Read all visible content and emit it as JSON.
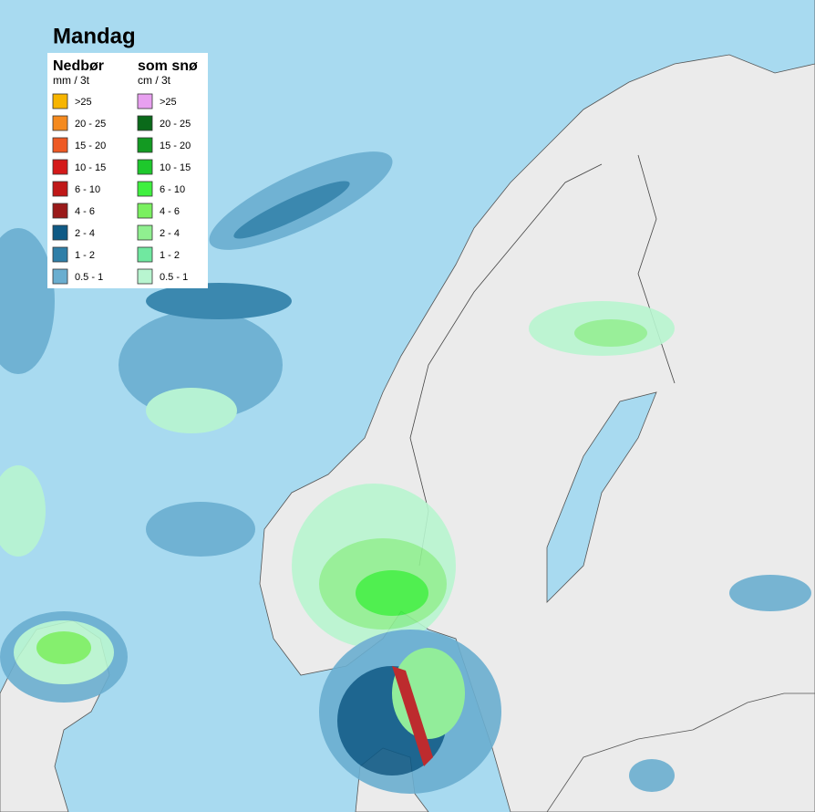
{
  "title": "Mandag",
  "legend": {
    "rain": {
      "title": "Nedbør",
      "unit": "mm / 3t",
      "items": [
        {
          "label": ">25",
          "color": "#f7b500"
        },
        {
          "label": "20 - 25",
          "color": "#f58a1e"
        },
        {
          "label": "15 - 20",
          "color": "#ee5a24"
        },
        {
          "label": "10 - 15",
          "color": "#d41a1a"
        },
        {
          "label": "6 - 10",
          "color": "#c01818"
        },
        {
          "label": "4 - 6",
          "color": "#9a1a1a"
        },
        {
          "label": "2 - 4",
          "color": "#0f5a85"
        },
        {
          "label": "1 - 2",
          "color": "#2f7fa8"
        },
        {
          "label": "0.5 - 1",
          "color": "#6aaed0"
        }
      ]
    },
    "snow": {
      "title": "som snø",
      "unit": "cm / 3t",
      "items": [
        {
          "label": ">25",
          "color": "#e8a0f0"
        },
        {
          "label": "20 - 25",
          "color": "#0a6a1a"
        },
        {
          "label": "15 - 20",
          "color": "#139a22"
        },
        {
          "label": "10 - 15",
          "color": "#1ec82c"
        },
        {
          "label": "6 - 10",
          "color": "#3ff03f"
        },
        {
          "label": "4 - 6",
          "color": "#7af060"
        },
        {
          "label": "2 - 4",
          "color": "#90f090"
        },
        {
          "label": "1 - 2",
          "color": "#70e8a0"
        },
        {
          "label": "0.5 - 1",
          "color": "#b8f5d0"
        }
      ]
    }
  }
}
